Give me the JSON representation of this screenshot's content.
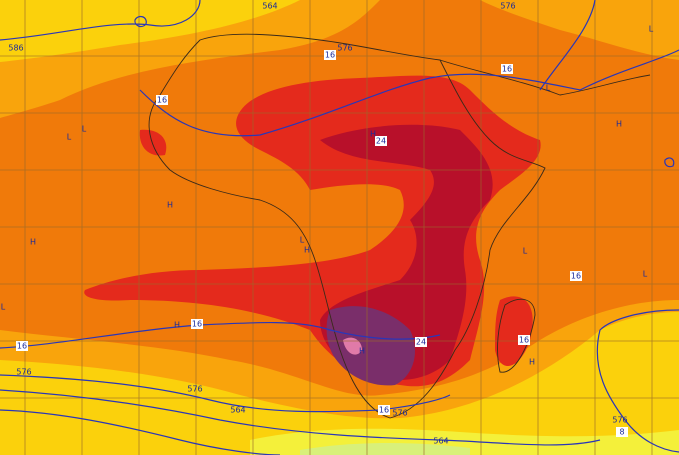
{
  "map": {
    "labels": [
      "586",
      "564",
      "576",
      "576",
      "16",
      "16",
      "16",
      "24",
      "H",
      "L",
      "L",
      "H",
      "L",
      "L",
      "H",
      "H",
      "L",
      "H",
      "L",
      "16",
      "L",
      "L",
      "H",
      "16",
      "24",
      "16",
      "H",
      "H",
      "16",
      "576",
      "576",
      "564",
      "16",
      "576",
      "564",
      "576",
      "8"
    ]
  }
}
